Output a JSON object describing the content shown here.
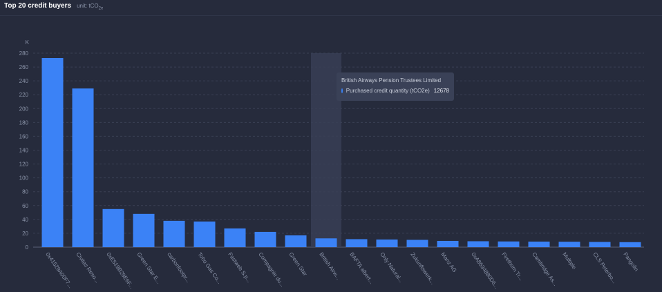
{
  "header": {
    "title": "Top 20 credit buyers",
    "unit_prefix": "unit: tCO",
    "unit_sub": "2e"
  },
  "colors": {
    "bar": "#3b82f6",
    "background": "#262b3c",
    "grid": "#3a4054",
    "axis_text": "#8a93a8",
    "highlight": "#3a4056"
  },
  "chart_data": {
    "type": "bar",
    "title": "Top 20 credit buyers",
    "unit_label": "K",
    "ylim": [
      0,
      280
    ],
    "yticks": [
      0,
      20,
      40,
      60,
      80,
      100,
      120,
      140,
      160,
      180,
      200,
      220,
      240,
      260,
      280
    ],
    "grid": true,
    "categories": [
      "0x41529A00F7...",
      "Civitas Reso...",
      "0xE519B29E6F...",
      "Green Star E...",
      "carbonfootpr...",
      "Toho Gas Co...",
      "Fastweb S.p...",
      "Compagnie du...",
      "Green Star",
      "British Airw...",
      "BAFTA albert...",
      "Only Natural...",
      "Zukunftswerk...",
      "Manz AG",
      "0xA8534880D6...",
      "Firethorn Tr...",
      "Cambridge As...",
      "Multiple",
      "CLS Peterbo...",
      "Pangolin"
    ],
    "series": [
      {
        "name": "Purchased credit quantity (tCO2e)",
        "values": [
          273000,
          229000,
          55000,
          48000,
          38000,
          37000,
          27000,
          22000,
          17000,
          12678,
          11500,
          11000,
          10500,
          9000,
          8500,
          8200,
          8000,
          7800,
          7500,
          7200
        ]
      }
    ],
    "tooltip": {
      "category": "British Airways Pension Trustees Limited",
      "series": "Purchased credit quantity (tCO2e)",
      "value": "12678",
      "index": 9
    }
  }
}
